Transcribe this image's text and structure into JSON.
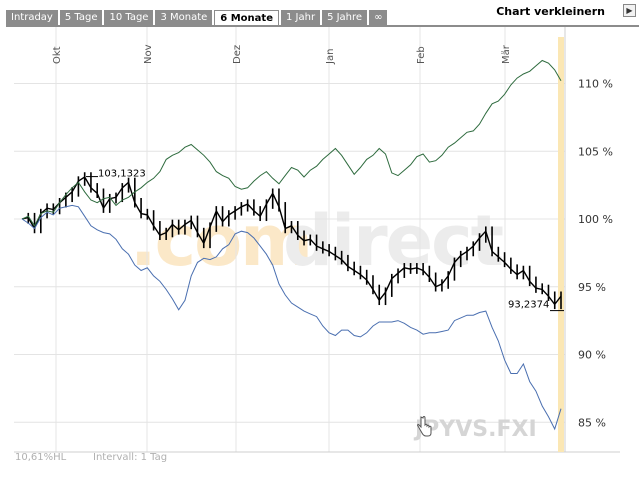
{
  "tabs": [
    {
      "label": "Intraday",
      "active": false
    },
    {
      "label": "5 Tage",
      "active": false
    },
    {
      "label": "10 Tage",
      "active": false
    },
    {
      "label": "3 Monate",
      "active": false
    },
    {
      "label": "6 Monate",
      "active": true
    },
    {
      "label": "1 Jahr",
      "active": false
    },
    {
      "label": "5 Jahre",
      "active": false
    },
    {
      "label": "∞",
      "active": false
    }
  ],
  "shrink_label": "Chart verkleinern",
  "shrink_icon": "arrow-right-icon",
  "watermark_a": ".com",
  "watermark_b": "direct",
  "symbol": "JPYVS.FXI",
  "footer": {
    "left": "10,61%HL",
    "interval": "Intervall: 1 Tag"
  },
  "colors": {
    "main": "#000000",
    "up_series": "#2e6b3e",
    "down_series": "#4a6fb0",
    "grid": "#e4e4e4",
    "marker": "#fbe7b4"
  },
  "chart_data": {
    "type": "line",
    "x_labels": [
      "Okt",
      "Nov",
      "Dez",
      "Jan",
      "Feb",
      "Mär"
    ],
    "y_ticks": [
      "110 %",
      "105 %",
      "100 %",
      "95 %",
      "90 %",
      "85 %"
    ],
    "y_tick_values": [
      110,
      105,
      100,
      95,
      90,
      85
    ],
    "ylim": [
      83.5,
      113.5
    ],
    "annotations": [
      {
        "label": "103,1323",
        "value": 103.13
      },
      {
        "label": "93,2374",
        "value": 93.24
      }
    ],
    "series": [
      {
        "role": "main",
        "values": [
          100,
          100.1,
          99.3,
          100.4,
          100.8,
          100.7,
          101.2,
          101.6,
          102.0,
          102.8,
          103.1,
          102.3,
          101.9,
          100.8,
          101.5,
          101.6,
          102.3,
          102.7,
          101.2,
          100.4,
          100.3,
          99.5,
          98.8,
          99.0,
          99.6,
          99.2,
          99.6,
          99.9,
          99.0,
          98.2,
          99.4,
          100.6,
          99.8,
          100.3,
          100.6,
          100.9,
          101.1,
          100.6,
          100.2,
          101.1,
          101.9,
          100.9,
          99.3,
          99.5,
          98.8,
          98.4,
          98.5,
          98.0,
          97.8,
          97.6,
          97.3,
          97.0,
          96.5,
          96.2,
          95.9,
          95.5,
          94.8,
          94.0,
          94.6,
          95.6,
          96.0,
          96.4,
          96.3,
          96.4,
          96.2,
          95.7,
          95.0,
          95.2,
          95.8,
          96.8,
          97.3,
          97.6,
          98.0,
          98.6,
          99.1,
          97.6,
          97.2,
          96.8,
          96.3,
          95.9,
          96.2,
          95.4,
          94.9,
          94.8,
          94.3,
          93.7,
          94.3
        ]
      },
      {
        "role": "up",
        "values": [
          100,
          100.2,
          99.5,
          100.4,
          100.6,
          100.5,
          101.2,
          101.8,
          102.3,
          102.7,
          102.0,
          101.4,
          101.2,
          101.5,
          101.6,
          101.0,
          101.4,
          101.6,
          102.0,
          102.3,
          102.7,
          103.0,
          103.5,
          104.4,
          104.7,
          104.9,
          105.3,
          105.5,
          105.1,
          104.7,
          104.2,
          103.5,
          103.2,
          103.0,
          102.4,
          102.2,
          102.3,
          102.8,
          103.2,
          103.5,
          103.0,
          102.6,
          103.2,
          103.8,
          103.6,
          103.1,
          103.6,
          103.9,
          104.4,
          104.8,
          105.2,
          104.7,
          104.0,
          103.3,
          103.8,
          104.4,
          104.7,
          105.2,
          104.8,
          103.4,
          103.2,
          103.6,
          104.0,
          104.6,
          104.8,
          104.2,
          104.3,
          104.7,
          105.3,
          105.6,
          106.0,
          106.4,
          106.5,
          107.0,
          107.8,
          108.5,
          108.7,
          109.2,
          109.9,
          110.4,
          110.7,
          110.9,
          111.3,
          111.7,
          111.5,
          111.0,
          110.2
        ]
      },
      {
        "role": "down",
        "values": [
          100,
          99.7,
          99.3,
          100.1,
          100.5,
          100.3,
          100.8,
          100.9,
          101.0,
          100.9,
          100.2,
          99.5,
          99.2,
          99.0,
          98.9,
          98.5,
          97.8,
          97.4,
          96.6,
          96.2,
          96.4,
          95.8,
          95.4,
          94.8,
          94.1,
          93.3,
          94.0,
          95.8,
          96.8,
          97.1,
          97.0,
          97.2,
          97.8,
          98.1,
          98.9,
          99.1,
          99.0,
          98.6,
          98.0,
          97.4,
          96.6,
          95.2,
          94.4,
          93.8,
          93.5,
          93.2,
          93.0,
          92.8,
          92.1,
          91.6,
          91.4,
          91.8,
          91.8,
          91.4,
          91.3,
          91.6,
          92.1,
          92.4,
          92.4,
          92.4,
          92.5,
          92.3,
          92.0,
          91.8,
          91.5,
          91.6,
          91.6,
          91.7,
          91.8,
          92.5,
          92.7,
          92.9,
          92.9,
          93.1,
          93.2,
          92.0,
          91.0,
          89.6,
          88.6,
          88.6,
          89.3,
          88.0,
          87.3,
          86.2,
          85.4,
          84.5,
          86.0
        ]
      }
    ]
  }
}
